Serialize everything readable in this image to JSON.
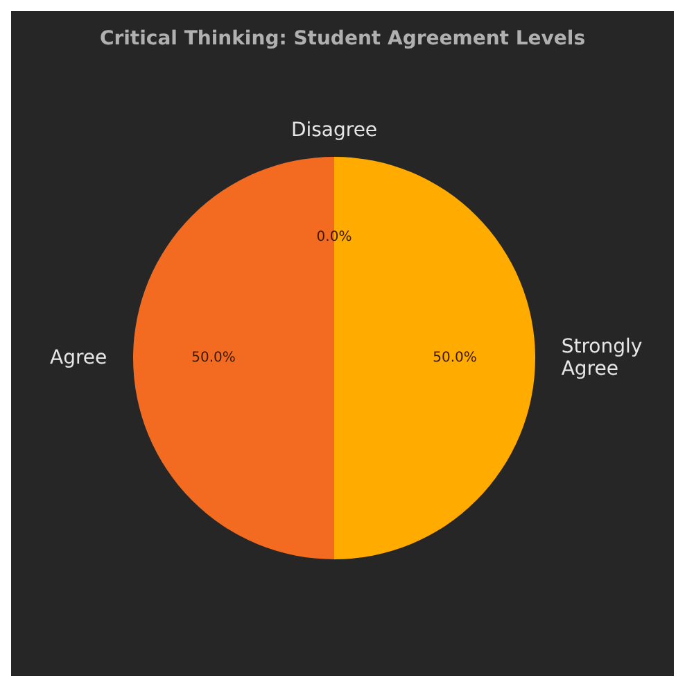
{
  "chart_data": {
    "type": "pie",
    "title": "Critical Thinking: Student Agreement Levels",
    "categories": [
      "Strongly Agree",
      "Agree",
      "Disagree"
    ],
    "values": [
      50,
      50,
      0
    ],
    "colors": [
      "#ffab00",
      "#f26b21",
      "#3f7fbf"
    ],
    "value_labels": [
      "50.0%",
      "50.0%",
      "0.0%"
    ]
  }
}
